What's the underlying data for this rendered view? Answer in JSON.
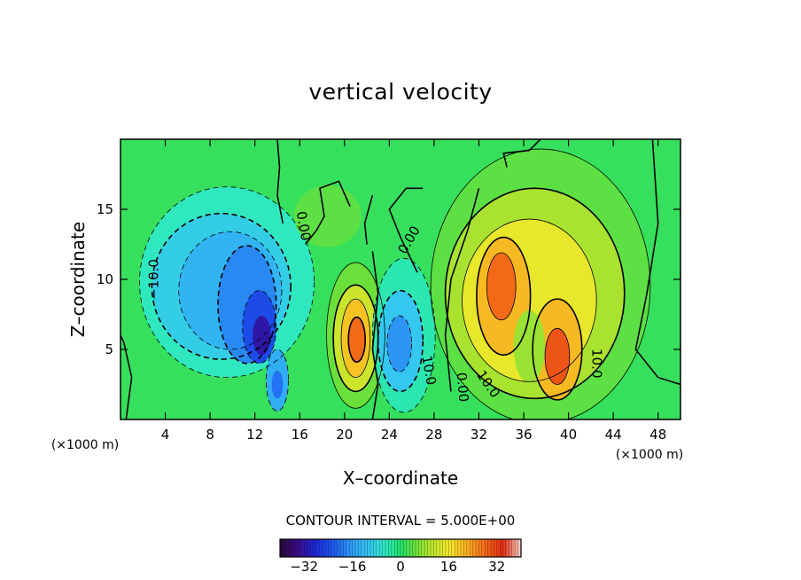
{
  "chart_data": {
    "type": "heatmap",
    "title": "vertical velocity",
    "xlabel": "X–coordinate",
    "ylabel": "Z–coordinate",
    "x_unit": "(×1000 m)",
    "z_unit": "(×1000 m)",
    "xlim": [
      0,
      50
    ],
    "ylim": [
      0,
      20
    ],
    "x_ticks": [
      4,
      8,
      12,
      16,
      20,
      24,
      28,
      32,
      36,
      40,
      44,
      48
    ],
    "y_ticks": [
      5,
      10,
      15
    ],
    "contour_interval_text": "CONTOUR INTERVAL = 5.000E+00",
    "contour_interval": 5,
    "colorbar": {
      "range": [
        -40,
        40
      ],
      "ticks": [
        -32,
        -16,
        0,
        16,
        32
      ],
      "tick_labels": [
        "−32",
        "−16",
        "0",
        "16",
        "32"
      ]
    },
    "contour_labels": [
      {
        "text": "−10.0",
        "x": 3.0,
        "y": 10.0,
        "angle": -90
      },
      {
        "text": "0.00",
        "x": 16.3,
        "y": 13.8,
        "angle": 80
      },
      {
        "text": "0.00",
        "x": 25.8,
        "y": 12.8,
        "angle": -60
      },
      {
        "text": "10.0",
        "x": 27.5,
        "y": 3.5,
        "angle": 80
      },
      {
        "text": "0.00",
        "x": 30.5,
        "y": 2.3,
        "angle": 85
      },
      {
        "text": "10.0",
        "x": 32.8,
        "y": 2.5,
        "angle": 55
      },
      {
        "text": "10.0",
        "x": 42.5,
        "y": 4.0,
        "angle": 90
      }
    ],
    "features": [
      {
        "kind": "downdraft",
        "center_x": 9.5,
        "center_z": 9.5,
        "peak_w": -15
      },
      {
        "kind": "downdraft",
        "center_x": 12.5,
        "center_z": 6.0,
        "peak_w": -30
      },
      {
        "kind": "downdraft",
        "center_x": 14.0,
        "center_z": 3.0,
        "peak_w": -18
      },
      {
        "kind": "updraft",
        "center_x": 21.0,
        "center_z": 5.7,
        "peak_w": 28
      },
      {
        "kind": "downdraft",
        "center_x": 25.0,
        "center_z": 5.5,
        "peak_w": -18
      },
      {
        "kind": "updraft",
        "center_x": 34.0,
        "center_z": 8.5,
        "peak_w": 30
      },
      {
        "kind": "updraft",
        "center_x": 39.0,
        "center_z": 4.5,
        "peak_w": 32
      }
    ]
  }
}
